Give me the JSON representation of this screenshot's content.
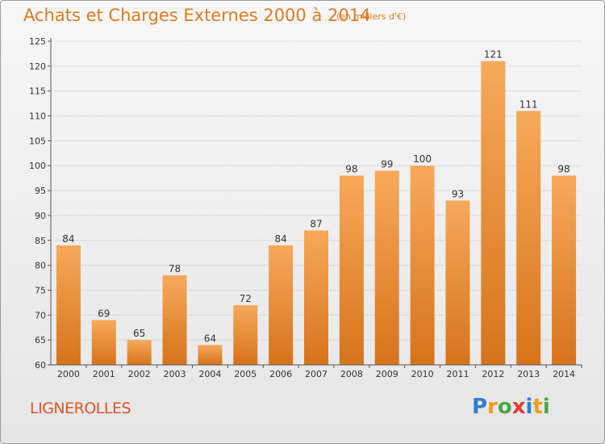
{
  "header": {
    "title": "Achats et Charges Externes 2000 à 2014",
    "subtitle": "(en milliers d'€)"
  },
  "footer": {
    "commune": "LIGNEROLLES",
    "logo_letters": [
      "P",
      "r",
      "o",
      "x",
      "i",
      "t",
      "i"
    ],
    "logo_colors": [
      "#2e7fd0",
      "#f19c1c",
      "#4aa844",
      "#e23b2f",
      "#2e7fd0",
      "#f19c1c",
      "#4aa844"
    ]
  },
  "chart_data": {
    "type": "bar",
    "categories": [
      "2000",
      "2001",
      "2002",
      "2003",
      "2004",
      "2005",
      "2006",
      "2007",
      "2008",
      "2009",
      "2010",
      "2011",
      "2012",
      "2013",
      "2014"
    ],
    "values": [
      84,
      69,
      65,
      78,
      64,
      72,
      84,
      87,
      98,
      99,
      100,
      93,
      121,
      111,
      98
    ],
    "ylim": [
      60,
      125
    ],
    "yticks": [
      60,
      65,
      70,
      75,
      80,
      85,
      90,
      95,
      100,
      105,
      110,
      115,
      120,
      125
    ],
    "grid": true,
    "bar_color_top": "#f7a95a",
    "bar_color_bottom": "#d7731a",
    "text_color": "#333333"
  }
}
